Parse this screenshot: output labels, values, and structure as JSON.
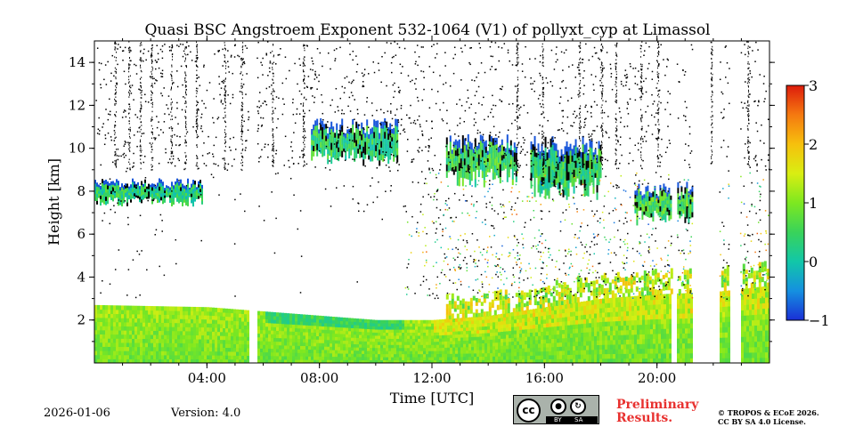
{
  "chart_data": {
    "type": "heatmap",
    "title": "Quasi BSC Angstroem Exponent 532-1064 (V1) of pollyxt_cyp at Limassol",
    "xlabel": "Time [UTC]",
    "ylabel": "Height [km]",
    "xlim_hours": [
      0,
      24
    ],
    "ylim_km": [
      0,
      15
    ],
    "x_ticks": [
      {
        "hour": 4,
        "label": "04:00"
      },
      {
        "hour": 8,
        "label": "08:00"
      },
      {
        "hour": 12,
        "label": "12:00"
      },
      {
        "hour": 16,
        "label": "16:00"
      },
      {
        "hour": 20,
        "label": "20:00"
      }
    ],
    "y_ticks": [
      {
        "km": 2,
        "label": "2"
      },
      {
        "km": 4,
        "label": "4"
      },
      {
        "km": 6,
        "label": "6"
      },
      {
        "km": 8,
        "label": "8"
      },
      {
        "km": 10,
        "label": "10"
      },
      {
        "km": 12,
        "label": "12"
      },
      {
        "km": 14,
        "label": "14"
      }
    ],
    "colorbar": {
      "range": [
        -1,
        3
      ],
      "ticks": [
        {
          "value": 3,
          "label": "3"
        },
        {
          "value": 2,
          "label": "2"
        },
        {
          "value": 1,
          "label": "1"
        },
        {
          "value": 0,
          "label": "0"
        },
        {
          "value": -1,
          "label": "−1"
        }
      ],
      "colormap": [
        "#1a2fd6",
        "#1590e0",
        "#12c7a8",
        "#39d35a",
        "#7de820",
        "#d9ee12",
        "#f6c00d",
        "#f57910",
        "#dd1c0c"
      ]
    },
    "boundary_layer_top_km": [
      [
        0,
        2.7
      ],
      [
        4,
        2.6
      ],
      [
        6,
        2.4
      ],
      [
        8,
        2.2
      ],
      [
        10,
        2.0
      ],
      [
        12,
        2.0
      ],
      [
        14,
        2.2
      ],
      [
        16,
        2.6
      ],
      [
        18,
        3.0
      ],
      [
        20,
        3.2
      ],
      [
        22,
        3.3
      ],
      [
        24,
        3.6
      ]
    ],
    "cloud_layers": [
      {
        "t_start": 0.0,
        "t_end": 3.8,
        "base_km": 7.3,
        "top_km": 8.6,
        "value": 0.3
      },
      {
        "t_start": 7.7,
        "t_end": 10.8,
        "base_km": 9.2,
        "top_km": 11.4,
        "value": 0.4
      },
      {
        "t_start": 12.5,
        "t_end": 15.0,
        "base_km": 8.2,
        "top_km": 10.7,
        "value": 0.5
      },
      {
        "t_start": 15.5,
        "t_end": 18.0,
        "base_km": 7.6,
        "top_km": 10.6,
        "value": 0.4
      },
      {
        "t_start": 19.2,
        "t_end": 21.3,
        "base_km": 6.4,
        "top_km": 8.5,
        "value": 0.6
      }
    ],
    "no_data_gaps_hours": [
      [
        5.5,
        5.75
      ],
      [
        20.5,
        20.7
      ],
      [
        21.25,
        22.2
      ],
      [
        22.55,
        22.95
      ]
    ],
    "date": "2026-01-06",
    "version": "Version: 4.0"
  },
  "footer": {
    "license_badge": {
      "cc": "cc",
      "by": "BY",
      "sa": "SA",
      "by_icon": "person-icon",
      "sa_icon": "share-alike-icon"
    },
    "preliminary_line1": "Preliminary",
    "preliminary_line2": "Results.",
    "copyright_line1": "© TROPOS & ECoE 2026.",
    "copyright_line2": "CC BY SA 4.0 License."
  }
}
